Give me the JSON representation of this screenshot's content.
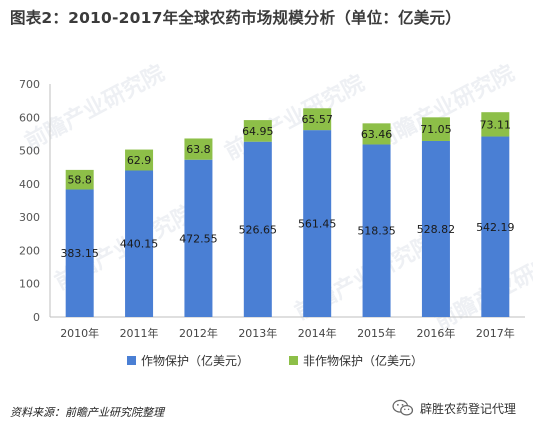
{
  "title": "图表2：2010-2017年全球农药市场规模分析（单位：亿美元）",
  "watermark_text": "前瞻产业研究院",
  "source_text": "资料来源：前瞻产业研究院整理",
  "credit_text": "辟胜农药登记代理",
  "icon": "wechat-icon",
  "colors": {
    "series1": "#4a7fd4",
    "series2": "#8dbf48",
    "axis": "#bfbfbf",
    "grid": "#e6e6e6"
  },
  "chart_data": {
    "type": "bar",
    "stacked": true,
    "categories": [
      "2010年",
      "2011年",
      "2012年",
      "2013年",
      "2014年",
      "2015年",
      "2016年",
      "2017年"
    ],
    "series": [
      {
        "name": "作物保护（亿美元）",
        "values": [
          383.15,
          440.15,
          472.55,
          526.65,
          561.45,
          518.35,
          528.82,
          542.19
        ]
      },
      {
        "name": "非作物保护（亿美元）",
        "values": [
          58.8,
          62.9,
          63.8,
          64.95,
          65.57,
          63.46,
          71.05,
          73.11
        ]
      }
    ],
    "value_labels": [
      [
        "383.15",
        "440.15",
        "472.55",
        "526.65",
        "561.45",
        "518.35",
        "528.82",
        "542.19"
      ],
      [
        "58.8",
        "62.9",
        "63.8",
        "64.95",
        "65.57",
        "63.46",
        "71.05",
        "73.11"
      ]
    ],
    "ylim": [
      0,
      700
    ],
    "yticks": [
      0,
      100,
      200,
      300,
      400,
      500,
      600,
      700
    ],
    "grid": false,
    "legend": "bottom"
  }
}
